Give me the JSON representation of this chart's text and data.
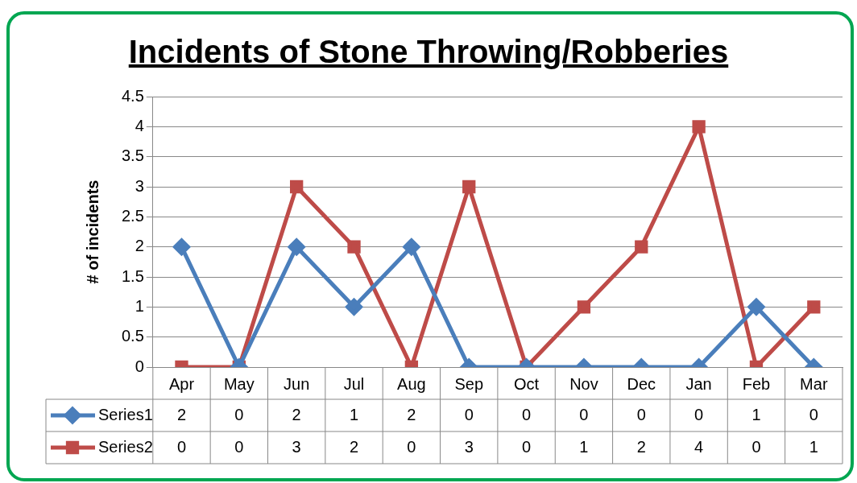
{
  "chart_data": {
    "type": "line",
    "title": "Incidents of Stone Throwing/Robberies",
    "ylabel": "# of incidents",
    "categories": [
      "Apr",
      "May",
      "Jun",
      "Jul",
      "Aug",
      "Sep",
      "Oct",
      "Nov",
      "Dec",
      "Jan",
      "Feb",
      "Mar"
    ],
    "series": [
      {
        "name": "Series1",
        "color": "#4a7ebb",
        "marker": "diamond",
        "values": [
          2,
          0,
          2,
          1,
          2,
          0,
          0,
          0,
          0,
          0,
          1,
          0
        ]
      },
      {
        "name": "Series2",
        "color": "#be4b48",
        "marker": "square",
        "values": [
          0,
          0,
          3,
          2,
          0,
          3,
          0,
          1,
          2,
          4,
          0,
          1
        ]
      }
    ],
    "ylim": [
      0,
      4.5
    ],
    "yticks": [
      0,
      0.5,
      1,
      1.5,
      2,
      2.5,
      3,
      3.5,
      4,
      4.5
    ],
    "grid": "y",
    "legend": "bottom",
    "data_labels": true,
    "line_style": "solid"
  }
}
